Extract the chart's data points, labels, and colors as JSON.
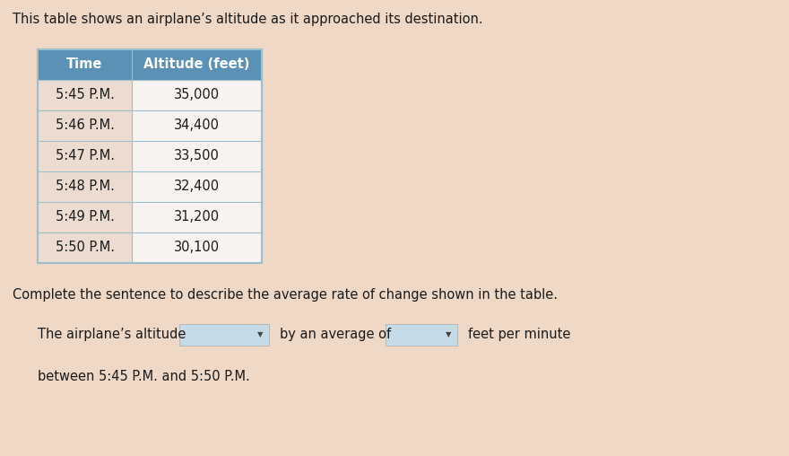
{
  "title": "This table shows an airplane’s altitude as it approached its destination.",
  "header": [
    "Time",
    "Altitude (feet)"
  ],
  "rows": [
    [
      "5:45 P.M.",
      "35,000"
    ],
    [
      "5:46 P.M.",
      "34,400"
    ],
    [
      "5:47 P.M.",
      "33,500"
    ],
    [
      "5:48 P.M.",
      "32,400"
    ],
    [
      "5:49 P.M.",
      "31,200"
    ],
    [
      "5:50 P.M.",
      "30,100"
    ]
  ],
  "sentence_label": "Complete the sentence to describe the average rate of change shown in the table.",
  "sentence_part1": "The airplane’s altitude",
  "sentence_part2": "by an average of",
  "sentence_part3": "feet per minute",
  "sentence_part4": "between 5:45 P.M. and 5:50 P.M.",
  "bg_color": "#efd8c5",
  "header_bg": "#5b91b5",
  "header_text_color": "#ffffff",
  "row_border_color": "#9bbfcf",
  "table_border_color": "#9bbfcf",
  "row_left_bg": "#ecdbd0",
  "row_right_bg": "#f7f3f0",
  "dropdown_bg": "#c5dce8",
  "title_color": "#1a1a1a",
  "body_text_color": "#1a1a1a",
  "title_fontsize": 10.5,
  "body_fontsize": 10.5,
  "table_fontsize": 10.5
}
